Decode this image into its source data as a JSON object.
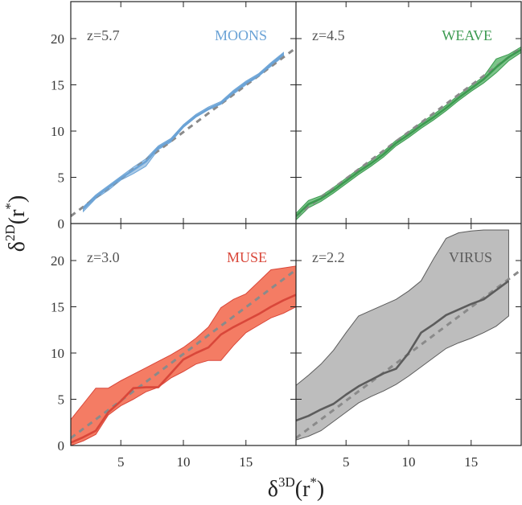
{
  "figure": {
    "xlabel_main": "δ",
    "xlabel_sup": "3D",
    "xlabel_tail": "(r",
    "xlabel_star": "*",
    "xlabel_close": ")",
    "ylabel_main": "δ",
    "ylabel_sup": "2D",
    "ylabel_tail": "(r",
    "ylabel_star": "*",
    "ylabel_close": ")"
  },
  "chart_data": [
    {
      "type": "line",
      "name": "MOONS",
      "redshift_label": "z=5.7",
      "survey_label": "MOONS",
      "color": "#6ba3d6",
      "fill_color": "#6ba3d6",
      "fill_opacity": 0.55,
      "xlim": [
        1,
        19
      ],
      "ylim": [
        0,
        24
      ],
      "xticks": [
        5,
        10,
        15
      ],
      "yticks": [
        0,
        5,
        10,
        15,
        20
      ],
      "x": [
        2,
        3,
        4,
        5,
        6,
        7,
        8,
        9,
        10,
        11,
        12,
        13,
        14,
        15,
        16,
        17,
        18
      ],
      "median": [
        1.6,
        2.9,
        3.9,
        4.9,
        5.8,
        6.7,
        8.2,
        9.0,
        10.5,
        11.6,
        12.4,
        13.0,
        14.2,
        15.2,
        16.0,
        17.2,
        18.3
      ],
      "lower": [
        1.3,
        2.7,
        3.6,
        4.7,
        5.4,
        6.2,
        8.0,
        8.8,
        10.4,
        11.5,
        12.3,
        12.9,
        14.0,
        15.0,
        15.9,
        17.0,
        18.1
      ],
      "upper": [
        1.8,
        3.1,
        4.1,
        5.1,
        6.1,
        7.0,
        8.4,
        9.2,
        10.7,
        11.8,
        12.6,
        13.2,
        14.4,
        15.4,
        16.2,
        17.4,
        18.5
      ],
      "reference": {
        "x": [
          1,
          19
        ],
        "y": [
          0.8,
          19.0
        ]
      }
    },
    {
      "type": "line",
      "name": "WEAVE",
      "redshift_label": "z=4.5",
      "survey_label": "WEAVE",
      "color": "#3c9a50",
      "fill_color": "#4fb061",
      "fill_opacity": 0.75,
      "xlim": [
        1,
        19
      ],
      "ylim": [
        0,
        24
      ],
      "xticks": [
        5,
        10,
        15
      ],
      "yticks": [
        0,
        5,
        10,
        15,
        20
      ],
      "x": [
        1,
        2,
        3,
        4,
        5,
        6,
        7,
        8,
        9,
        10,
        11,
        12,
        13,
        14,
        15,
        16,
        17,
        18,
        19
      ],
      "median": [
        0.8,
        2.1,
        2.7,
        3.6,
        4.6,
        5.6,
        6.5,
        7.5,
        8.7,
        9.6,
        10.6,
        11.5,
        12.5,
        13.6,
        14.6,
        15.6,
        16.9,
        18.0,
        18.8
      ],
      "lower": [
        0.4,
        1.7,
        2.4,
        3.3,
        4.3,
        5.3,
        6.2,
        7.2,
        8.4,
        9.3,
        10.3,
        11.2,
        12.2,
        13.3,
        14.3,
        15.2,
        16.3,
        17.6,
        18.5
      ],
      "upper": [
        1.1,
        2.5,
        3.0,
        3.9,
        4.9,
        5.9,
        6.8,
        7.8,
        9.0,
        9.9,
        10.9,
        11.8,
        12.8,
        13.9,
        14.9,
        15.9,
        17.8,
        18.3,
        19.1
      ],
      "reference": {
        "x": [
          1,
          19
        ],
        "y": [
          0.8,
          19.0
        ]
      }
    },
    {
      "type": "line",
      "name": "MUSE",
      "redshift_label": "z=3.0",
      "survey_label": "MUSE",
      "color": "#d9473a",
      "fill_color": "#f47c64",
      "fill_opacity": 1.0,
      "xlim": [
        1,
        19
      ],
      "ylim": [
        0,
        24
      ],
      "xticks": [
        5,
        10,
        15
      ],
      "yticks": [
        0,
        5,
        10,
        15,
        20
      ],
      "x": [
        1,
        2,
        3,
        4,
        5,
        6,
        7,
        8,
        9,
        10,
        11,
        12,
        13,
        14,
        15,
        16,
        17,
        18,
        19
      ],
      "median": [
        0.3,
        0.9,
        1.6,
        3.6,
        4.8,
        6.2,
        6.3,
        6.3,
        7.8,
        9.3,
        10.0,
        10.6,
        12.0,
        12.8,
        13.5,
        14.2,
        15.0,
        15.7,
        16.3
      ],
      "lower": [
        0.0,
        0.5,
        1.2,
        3.3,
        4.3,
        5.0,
        5.8,
        6.3,
        7.3,
        8.0,
        8.8,
        9.2,
        9.2,
        10.8,
        12.2,
        13.0,
        13.8,
        14.3,
        15.0
      ],
      "upper": [
        2.8,
        4.5,
        6.2,
        6.2,
        7.0,
        7.7,
        8.4,
        9.1,
        9.8,
        10.6,
        11.6,
        12.8,
        14.9,
        15.8,
        16.4,
        17.7,
        19.0,
        19.2,
        19.4
      ],
      "reference": {
        "x": [
          1,
          19
        ],
        "y": [
          0.8,
          19.0
        ]
      }
    },
    {
      "type": "line",
      "name": "VIRUS",
      "redshift_label": "z=2.2",
      "survey_label": "VIRUS",
      "color": "#5c5c5c",
      "fill_color": "#bdbdbd",
      "fill_opacity": 1.0,
      "xlim": [
        1,
        19
      ],
      "ylim": [
        0,
        24
      ],
      "xticks": [
        5,
        10,
        15
      ],
      "yticks": [
        0,
        5,
        10,
        15,
        20
      ],
      "x": [
        1,
        2,
        3,
        4,
        5,
        6,
        7,
        8,
        9,
        10,
        11,
        12,
        13,
        14,
        15,
        16,
        17,
        18
      ],
      "median": [
        2.7,
        3.2,
        3.9,
        4.5,
        5.5,
        6.4,
        7.1,
        7.8,
        8.3,
        10.0,
        12.2,
        13.1,
        14.1,
        14.7,
        15.3,
        15.8,
        16.8,
        17.8
      ],
      "lower": [
        0.6,
        1.0,
        1.6,
        2.6,
        3.6,
        4.6,
        5.3,
        5.9,
        6.6,
        7.5,
        8.5,
        9.5,
        10.5,
        11.1,
        11.6,
        12.2,
        12.9,
        14.0
      ],
      "upper": [
        6.5,
        7.6,
        8.8,
        10.3,
        12.2,
        14.0,
        14.6,
        15.2,
        15.8,
        16.7,
        17.8,
        20.2,
        22.4,
        23.0,
        23.2,
        23.3,
        23.3,
        23.3
      ],
      "reference": {
        "x": [
          1,
          19
        ],
        "y": [
          0.8,
          19.0
        ]
      }
    }
  ]
}
